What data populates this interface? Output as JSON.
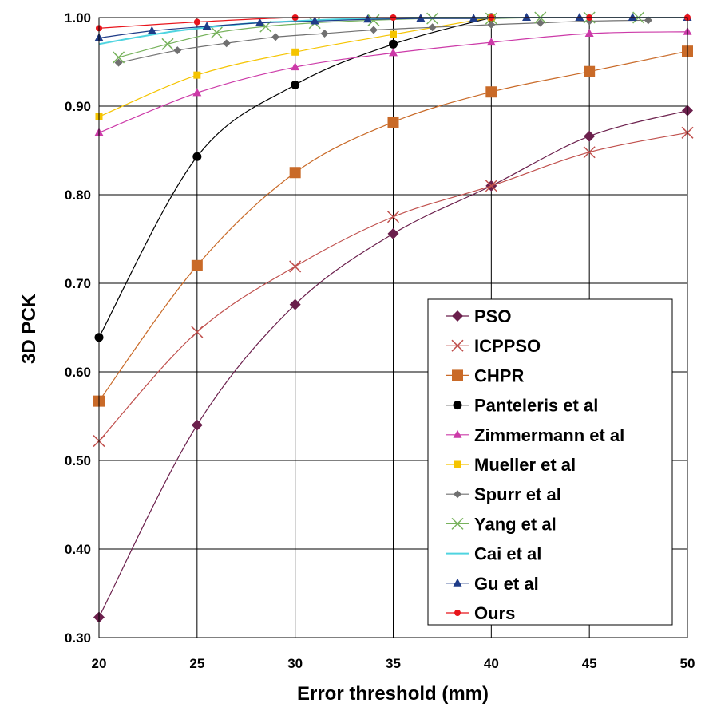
{
  "chart_data": {
    "type": "line",
    "title": "",
    "xlabel": "Error threshold (mm)",
    "ylabel": "3D PCK",
    "xlim": [
      20,
      50
    ],
    "ylim": [
      0.3,
      1.0
    ],
    "x_ticks": [
      20,
      25,
      30,
      35,
      40,
      45,
      50
    ],
    "x_tick_labels": [
      "20",
      "25",
      "30",
      "35",
      "40",
      "45",
      "50"
    ],
    "y_ticks": [
      0.3,
      0.4,
      0.5,
      0.6,
      0.7,
      0.8,
      0.9,
      1.0
    ],
    "y_tick_labels": [
      "0.30",
      "0.40",
      "0.50",
      "0.60",
      "0.70",
      "0.80",
      "0.90",
      "1.00"
    ],
    "grid": true,
    "legend_position": "bottom-right",
    "series": [
      {
        "name": "PSO",
        "color": "#6b1f4c",
        "marker": "diamond",
        "x": [
          20,
          25,
          30,
          35,
          40,
          45,
          50
        ],
        "values": [
          0.323,
          0.54,
          0.676,
          0.756,
          0.81,
          0.866,
          0.895
        ]
      },
      {
        "name": "ICPPSO",
        "color": "#c0504d",
        "marker": "x",
        "x": [
          20,
          25,
          30,
          35,
          40,
          45,
          50
        ],
        "values": [
          0.522,
          0.645,
          0.719,
          0.775,
          0.81,
          0.848,
          0.87
        ]
      },
      {
        "name": "CHPR",
        "color": "#c96a28",
        "marker": "square",
        "x": [
          20,
          25,
          30,
          35,
          40,
          45,
          50
        ],
        "values": [
          0.567,
          0.72,
          0.825,
          0.882,
          0.916,
          0.939,
          0.962
        ]
      },
      {
        "name": "Panteleris et al",
        "color": "#000000",
        "marker": "circle",
        "x": [
          20,
          25,
          30,
          35,
          40
        ],
        "values": [
          0.639,
          0.843,
          0.924,
          0.97,
          1.0
        ]
      },
      {
        "name": "Zimmermann et al",
        "color": "#cc3aa8",
        "marker": "triangle",
        "x": [
          20,
          25,
          30,
          35,
          40,
          45,
          50
        ],
        "values": [
          0.87,
          0.915,
          0.944,
          0.96,
          0.972,
          0.982,
          0.984
        ]
      },
      {
        "name": "Mueller et al",
        "color": "#f5c400",
        "marker": "square-small",
        "x": [
          20,
          25,
          30,
          35,
          40
        ],
        "values": [
          0.888,
          0.935,
          0.961,
          0.981,
          1.0
        ]
      },
      {
        "name": "Spurr et al",
        "color": "#707070",
        "marker": "diamond-small",
        "x": [
          21,
          24,
          26.5,
          29,
          31.5,
          34,
          37,
          40,
          42.5,
          45,
          48
        ],
        "values": [
          0.949,
          0.963,
          0.971,
          0.978,
          0.982,
          0.986,
          0.989,
          0.992,
          0.994,
          0.996,
          0.997
        ]
      },
      {
        "name": "Yang et al",
        "color": "#77b25c",
        "marker": "x",
        "x": [
          21,
          23.5,
          26,
          28.5,
          31,
          34,
          37,
          40,
          42.5,
          45,
          47.5
        ],
        "values": [
          0.955,
          0.97,
          0.983,
          0.99,
          0.994,
          0.997,
          0.999,
          0.999,
          1.0,
          1.0,
          1.0
        ]
      },
      {
        "name": "Cai et al",
        "color": "#4fd4e0",
        "marker": "none",
        "x": [
          20,
          22,
          24,
          26,
          28,
          30,
          32,
          34,
          36,
          38,
          40,
          45,
          50
        ],
        "values": [
          0.97,
          0.978,
          0.985,
          0.99,
          0.994,
          0.996,
          0.998,
          0.999,
          1.0,
          1.0,
          1.0,
          1.0,
          1.0
        ]
      },
      {
        "name": "Gu et al",
        "color": "#1f3c88",
        "marker": "triangle",
        "x": [
          20,
          22.7,
          25.5,
          28.2,
          31,
          33.7,
          36.4,
          39.1,
          41.8,
          44.5,
          47.2,
          50
        ],
        "values": [
          0.977,
          0.985,
          0.99,
          0.994,
          0.996,
          0.998,
          0.999,
          0.999,
          1.0,
          1.0,
          1.0,
          1.0
        ]
      },
      {
        "name": "Ours",
        "color": "#e8141b",
        "marker": "circle-small",
        "x": [
          20,
          25,
          30,
          35,
          40,
          45,
          50
        ],
        "values": [
          0.988,
          0.995,
          1.0,
          1.0,
          1.0,
          1.0,
          1.0
        ]
      }
    ]
  }
}
